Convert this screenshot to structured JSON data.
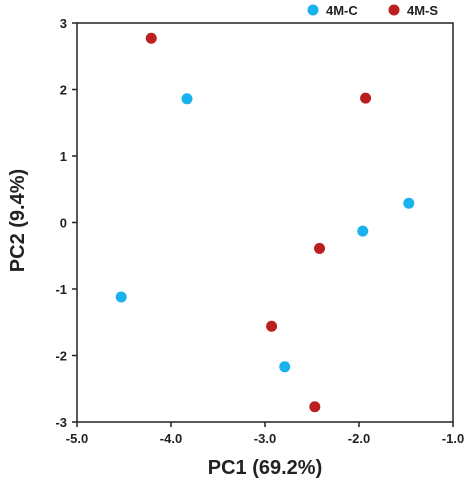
{
  "chart_data": {
    "type": "scatter",
    "xlabel": "PC1 (69.2%)",
    "ylabel": "PC2 (9.4%)",
    "xlim": [
      -5.0,
      -1.0
    ],
    "ylim": [
      -3,
      3
    ],
    "x_ticks": [
      -5.0,
      -4.0,
      -3.0,
      -2.0,
      -1.0
    ],
    "x_tick_labels": [
      "-5.0",
      "-4.0",
      "-3.0",
      "-2.0",
      "-1.0"
    ],
    "y_ticks": [
      -3,
      -2,
      -1,
      0,
      1,
      2,
      3
    ],
    "y_tick_labels": [
      "-3",
      "-2",
      "-1",
      "0",
      "1",
      "2",
      "3"
    ],
    "grid": false,
    "legend_position": "top-right",
    "series": [
      {
        "name": "4M-C",
        "color": "#1ab2ec",
        "points": [
          {
            "x": -3.83,
            "y": 1.86
          },
          {
            "x": -4.53,
            "y": -1.12
          },
          {
            "x": -2.79,
            "y": -2.17
          },
          {
            "x": -1.96,
            "y": -0.13
          },
          {
            "x": -1.47,
            "y": 0.29
          }
        ]
      },
      {
        "name": "4M-S",
        "color": "#bb1f1f",
        "points": [
          {
            "x": -4.21,
            "y": 2.77
          },
          {
            "x": -1.93,
            "y": 1.87
          },
          {
            "x": -2.42,
            "y": -0.39
          },
          {
            "x": -2.93,
            "y": -1.56
          },
          {
            "x": -2.47,
            "y": -2.77
          }
        ]
      }
    ]
  }
}
